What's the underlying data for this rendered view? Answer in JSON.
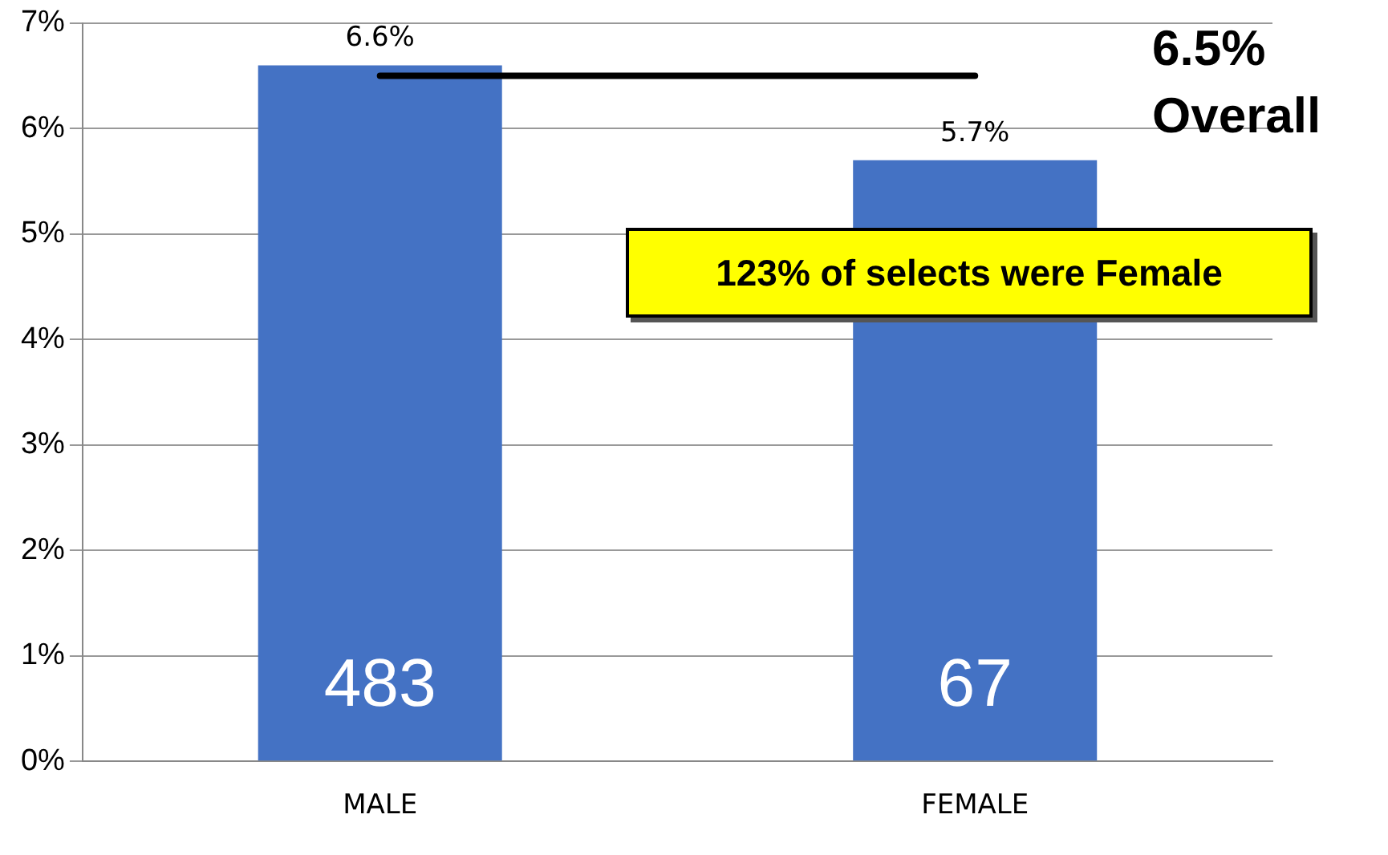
{
  "chart_data": {
    "type": "bar",
    "categories": [
      "MALE",
      "FEMALE"
    ],
    "values": [
      6.6,
      5.7
    ],
    "color": "#4472c4",
    "value_labels": [
      "6.6%",
      "5.7%"
    ],
    "ylim": [
      0,
      7
    ],
    "yticks": [
      {
        "value": 0,
        "label": "0%"
      },
      {
        "value": 1,
        "label": "1%"
      },
      {
        "value": 2,
        "label": "2%"
      },
      {
        "value": 3,
        "label": "3%"
      },
      {
        "value": 4,
        "label": "4%"
      },
      {
        "value": 5,
        "label": "5%"
      },
      {
        "value": 6,
        "label": "6%"
      },
      {
        "value": 7,
        "label": "7%"
      }
    ],
    "grid": "y",
    "legend": false,
    "ref_lines": [
      {
        "axis": "y",
        "value": 6.5,
        "label": "6.5% Overall",
        "color": "#000000"
      }
    ],
    "annotations": [
      "483",
      "67",
      "123% of selects were Female"
    ]
  }
}
